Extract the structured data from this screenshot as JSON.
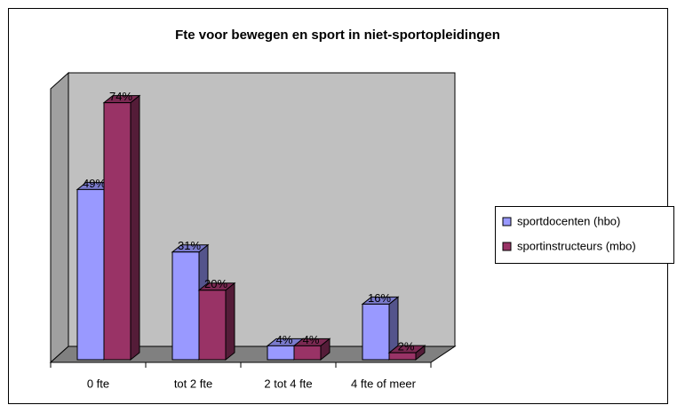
{
  "chart_data": {
    "type": "bar3d",
    "title": "Fte voor bewegen en sport in niet-sportopleidingen",
    "categories": [
      "0 fte",
      "tot 2 fte",
      "2 tot 4 fte",
      "4 fte of meer"
    ],
    "series": [
      {
        "name": "sportdocenten (hbo)",
        "color": "#9999ff",
        "values": [
          49,
          31,
          4,
          16
        ],
        "value_labels": [
          "49%",
          "31%",
          "4%",
          "16%"
        ]
      },
      {
        "name": "sportinstructeurs (mbo)",
        "color": "#993366",
        "values": [
          74,
          20,
          4,
          2
        ],
        "value_labels": [
          "74%",
          "20%",
          "4%",
          "2%"
        ]
      }
    ],
    "ylim": [
      0,
      78
    ],
    "legend": "right"
  }
}
